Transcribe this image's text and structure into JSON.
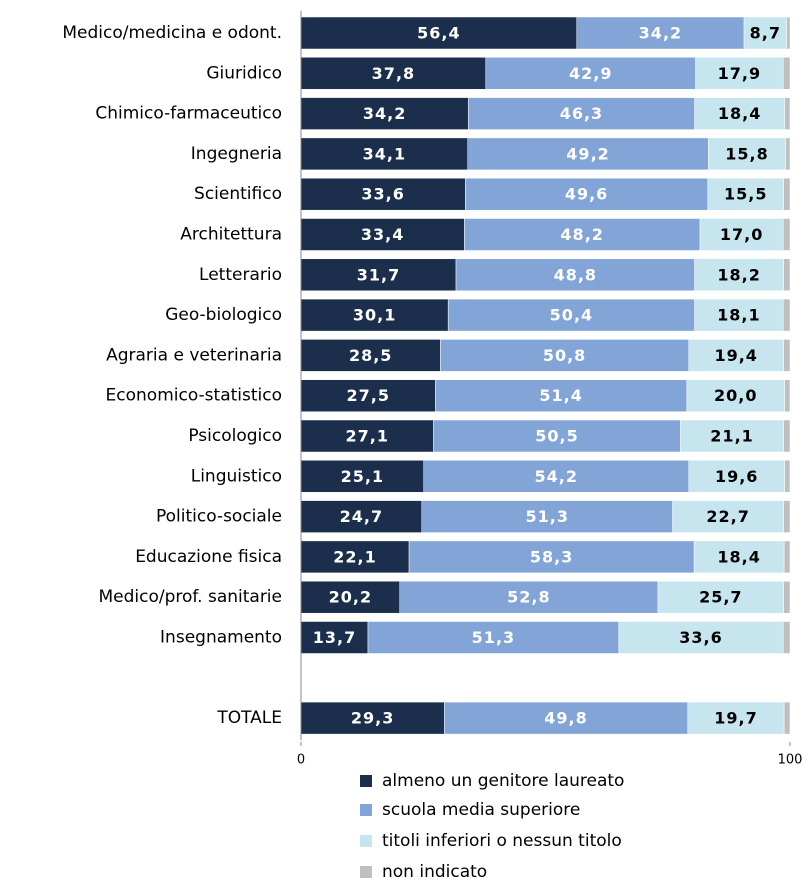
{
  "chart_data": {
    "type": "stacked_bar_horizontal",
    "categories": [
      "Medico/medicina e odont.",
      "Giuridico",
      "Chimico-farmaceutico",
      "Ingegneria",
      "Scientifico",
      "Architettura",
      "Letterario",
      "Geo-biologico",
      "Agraria e veterinaria",
      "Economico-statistico",
      "Psicologico",
      "Linguistico",
      "Politico-sociale",
      "Educazione fisica",
      "Medico/prof. sanitarie",
      "Insegnamento",
      null,
      "TOTALE"
    ],
    "series": [
      {
        "name": "almeno un genitore laureato",
        "color": "#1b2f4c",
        "label_color": "#ffffff",
        "values": [
          56.4,
          37.8,
          34.2,
          34.1,
          33.6,
          33.4,
          31.7,
          30.1,
          28.5,
          27.5,
          27.1,
          25.1,
          24.7,
          22.1,
          20.2,
          13.7,
          null,
          29.3
        ],
        "value_labels": [
          "56,4",
          "37,8",
          "34,2",
          "34,1",
          "33,6",
          "33,4",
          "31,7",
          "30,1",
          "28,5",
          "27,5",
          "27,1",
          "25,1",
          "24,7",
          "22,1",
          "20,2",
          "13,7",
          null,
          "29,3"
        ]
      },
      {
        "name": "scuola media superiore",
        "color": "#82a4d6",
        "label_color": "#ffffff",
        "values": [
          34.2,
          42.9,
          46.3,
          49.2,
          49.6,
          48.2,
          48.8,
          50.4,
          50.8,
          51.4,
          50.5,
          54.2,
          51.3,
          58.3,
          52.8,
          51.3,
          null,
          49.8
        ],
        "value_labels": [
          "34,2",
          "42,9",
          "46,3",
          "49,2",
          "49,6",
          "48,2",
          "48,8",
          "50,4",
          "50,8",
          "51,4",
          "50,5",
          "54,2",
          "51,3",
          "58,3",
          "52,8",
          "51,3",
          null,
          "49,8"
        ]
      },
      {
        "name": "titoli inferiori o nessun titolo",
        "color": "#c6e5ef",
        "label_color": "#000000",
        "values": [
          8.7,
          17.9,
          18.4,
          15.8,
          15.5,
          17.0,
          18.2,
          18.1,
          19.4,
          20.0,
          21.1,
          19.6,
          22.7,
          18.4,
          25.7,
          33.6,
          null,
          19.7
        ],
        "value_labels": [
          "8,7",
          "17,9",
          "18,4",
          "15,8",
          "15,5",
          "17,0",
          "18,2",
          "18,1",
          "19,4",
          "20,0",
          "21,1",
          "19,6",
          "22,7",
          "18,4",
          "25,7",
          "33,6",
          null,
          "19,7"
        ]
      },
      {
        "name": "non indicato",
        "color": "#bfbfbf",
        "values": [
          0.7,
          1.4,
          1.1,
          0.9,
          1.3,
          1.4,
          1.3,
          1.4,
          1.3,
          1.1,
          1.3,
          1.1,
          1.3,
          1.2,
          1.3,
          1.4,
          null,
          1.2
        ]
      }
    ],
    "xlim": [
      0,
      100
    ],
    "xticks": [
      0,
      100
    ],
    "legend": "bottom"
  }
}
